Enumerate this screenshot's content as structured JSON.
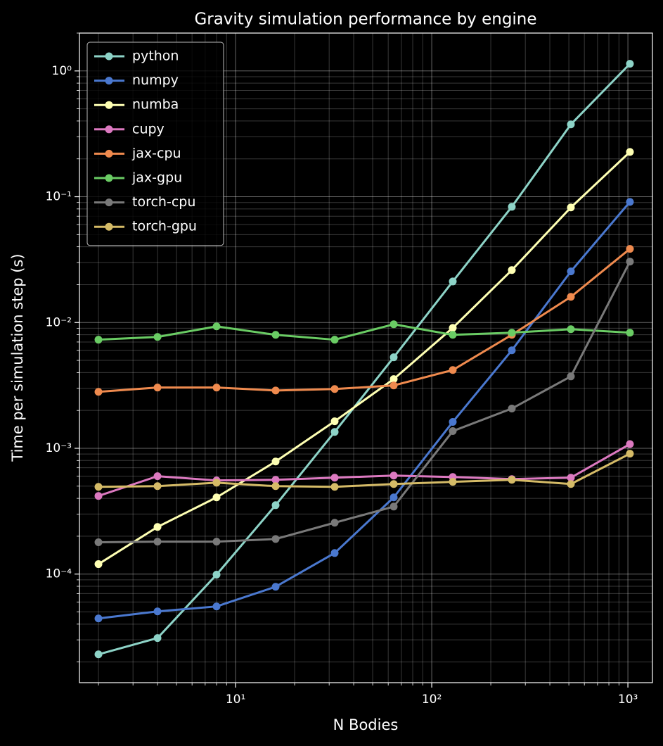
{
  "chart_data": {
    "type": "line",
    "title": "Gravity simulation performance by engine",
    "x_label": "N Bodies",
    "y_label": "Time per simulation step (s)",
    "x": [
      2,
      4,
      8,
      16,
      32,
      64,
      128,
      256,
      512,
      1024
    ],
    "xscale": "log",
    "yscale": "log",
    "xlim": [
      1.6,
      1334
    ],
    "ylim": [
      1.37e-05,
      2.0
    ],
    "xticks": [
      {
        "value": 10,
        "label": "10¹"
      },
      {
        "value": 100,
        "label": "10²"
      },
      {
        "value": 1000,
        "label": "10³"
      }
    ],
    "yticks": [
      {
        "value": 0.0001,
        "label": "10⁻⁴"
      },
      {
        "value": 0.001,
        "label": "10⁻³"
      },
      {
        "value": 0.01,
        "label": "10⁻²"
      },
      {
        "value": 0.1,
        "label": "10⁻¹"
      },
      {
        "value": 1,
        "label": "10⁰"
      }
    ],
    "grid": "both",
    "legend": "upper left",
    "series": [
      {
        "name": "python",
        "color": "#8dd3c7",
        "values": [
          2.3e-05,
          3.1e-05,
          9.9e-05,
          0.000353,
          0.00135,
          0.00529,
          0.0212,
          0.0832,
          0.376,
          1.14
        ]
      },
      {
        "name": "numpy",
        "color": "#4a78cf",
        "values": [
          4.44e-05,
          5.05e-05,
          5.53e-05,
          7.93e-05,
          0.000147,
          0.000407,
          0.00162,
          0.00601,
          0.0255,
          0.091
        ]
      },
      {
        "name": "numba",
        "color": "#feffb3",
        "values": [
          0.00012,
          0.000237,
          0.000407,
          0.000785,
          0.00164,
          0.00355,
          0.00907,
          0.0261,
          0.0822,
          0.227
        ]
      },
      {
        "name": "cupy",
        "color": "#dc79c0",
        "values": [
          0.000418,
          0.0006,
          0.000555,
          0.000562,
          0.000584,
          0.000607,
          0.000591,
          0.000569,
          0.000584,
          0.00108
        ]
      },
      {
        "name": "jax-cpu",
        "color": "#ef8a4e",
        "values": [
          0.00281,
          0.00304,
          0.00304,
          0.00288,
          0.00296,
          0.00316,
          0.00419,
          0.00798,
          0.016,
          0.0385
        ]
      },
      {
        "name": "jax-gpu",
        "color": "#6acc64",
        "values": [
          0.0073,
          0.00768,
          0.00932,
          0.00798,
          0.0073,
          0.00968,
          0.00798,
          0.0083,
          0.00885,
          0.0083
        ]
      },
      {
        "name": "torch-cpu",
        "color": "#797979",
        "values": [
          0.000179,
          0.000181,
          0.000181,
          0.00019,
          0.000256,
          0.000344,
          0.00137,
          0.00207,
          0.00373,
          0.0305
        ]
      },
      {
        "name": "torch-gpu",
        "color": "#d5bb67",
        "values": [
          0.000494,
          0.0005,
          0.000533,
          0.0005,
          0.000494,
          0.00052,
          0.000541,
          0.000562,
          0.00052,
          0.000906
        ]
      }
    ]
  }
}
